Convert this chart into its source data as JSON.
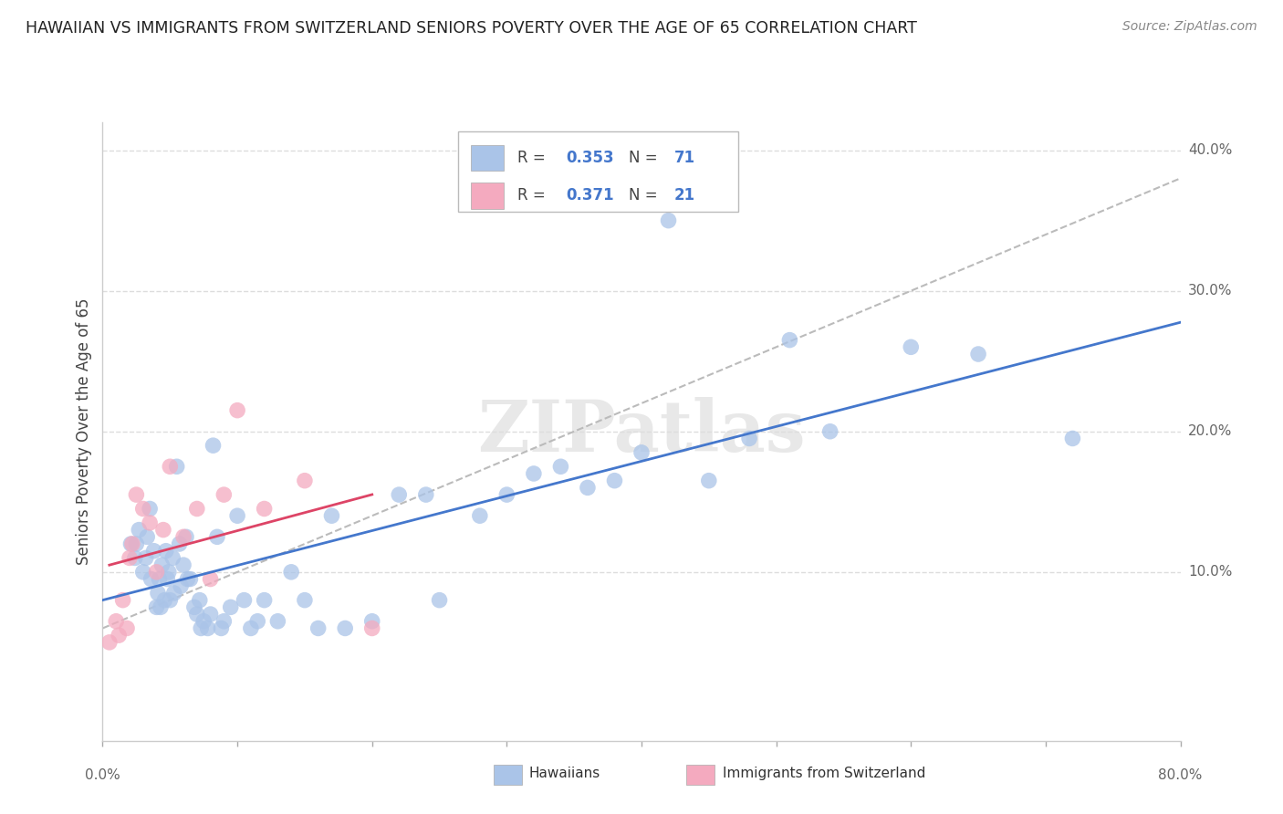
{
  "title": "HAWAIIAN VS IMMIGRANTS FROM SWITZERLAND SENIORS POVERTY OVER THE AGE OF 65 CORRELATION CHART",
  "source": "Source: ZipAtlas.com",
  "ylabel": "Seniors Poverty Over the Age of 65",
  "xrange": [
    0.0,
    0.8
  ],
  "yrange": [
    -0.02,
    0.42
  ],
  "legend_r1": "0.353",
  "legend_n1": "71",
  "legend_r2": "0.371",
  "legend_n2": "21",
  "hawaiian_color": "#aac4e8",
  "swiss_color": "#f4aabf",
  "trendline_hawaiian_color": "#4477cc",
  "trendline_swiss_color": "#dd4466",
  "trendline_dashed_color": "#bbbbbb",
  "legend_text_color": "#4477cc",
  "hawaiian_x": [
    0.021,
    0.024,
    0.025,
    0.027,
    0.03,
    0.032,
    0.033,
    0.035,
    0.036,
    0.038,
    0.04,
    0.041,
    0.042,
    0.043,
    0.044,
    0.046,
    0.047,
    0.048,
    0.049,
    0.05,
    0.052,
    0.053,
    0.055,
    0.057,
    0.058,
    0.06,
    0.062,
    0.063,
    0.065,
    0.068,
    0.07,
    0.072,
    0.073,
    0.075,
    0.078,
    0.08,
    0.082,
    0.085,
    0.088,
    0.09,
    0.095,
    0.1,
    0.105,
    0.11,
    0.115,
    0.12,
    0.13,
    0.14,
    0.15,
    0.16,
    0.17,
    0.18,
    0.2,
    0.22,
    0.24,
    0.25,
    0.28,
    0.3,
    0.32,
    0.34,
    0.36,
    0.38,
    0.4,
    0.42,
    0.45,
    0.48,
    0.51,
    0.54,
    0.6,
    0.65,
    0.72
  ],
  "hawaiian_y": [
    0.12,
    0.11,
    0.12,
    0.13,
    0.1,
    0.11,
    0.125,
    0.145,
    0.095,
    0.115,
    0.075,
    0.085,
    0.095,
    0.075,
    0.105,
    0.08,
    0.115,
    0.095,
    0.1,
    0.08,
    0.11,
    0.085,
    0.175,
    0.12,
    0.09,
    0.105,
    0.125,
    0.095,
    0.095,
    0.075,
    0.07,
    0.08,
    0.06,
    0.065,
    0.06,
    0.07,
    0.19,
    0.125,
    0.06,
    0.065,
    0.075,
    0.14,
    0.08,
    0.06,
    0.065,
    0.08,
    0.065,
    0.1,
    0.08,
    0.06,
    0.14,
    0.06,
    0.065,
    0.155,
    0.155,
    0.08,
    0.14,
    0.155,
    0.17,
    0.175,
    0.16,
    0.165,
    0.185,
    0.35,
    0.165,
    0.195,
    0.265,
    0.2,
    0.26,
    0.255,
    0.195
  ],
  "swiss_x": [
    0.005,
    0.01,
    0.012,
    0.015,
    0.018,
    0.02,
    0.022,
    0.025,
    0.03,
    0.035,
    0.04,
    0.045,
    0.05,
    0.06,
    0.07,
    0.08,
    0.09,
    0.1,
    0.12,
    0.15,
    0.2
  ],
  "swiss_y": [
    0.05,
    0.065,
    0.055,
    0.08,
    0.06,
    0.11,
    0.12,
    0.155,
    0.145,
    0.135,
    0.1,
    0.13,
    0.175,
    0.125,
    0.145,
    0.095,
    0.155,
    0.215,
    0.145,
    0.165,
    0.06
  ]
}
